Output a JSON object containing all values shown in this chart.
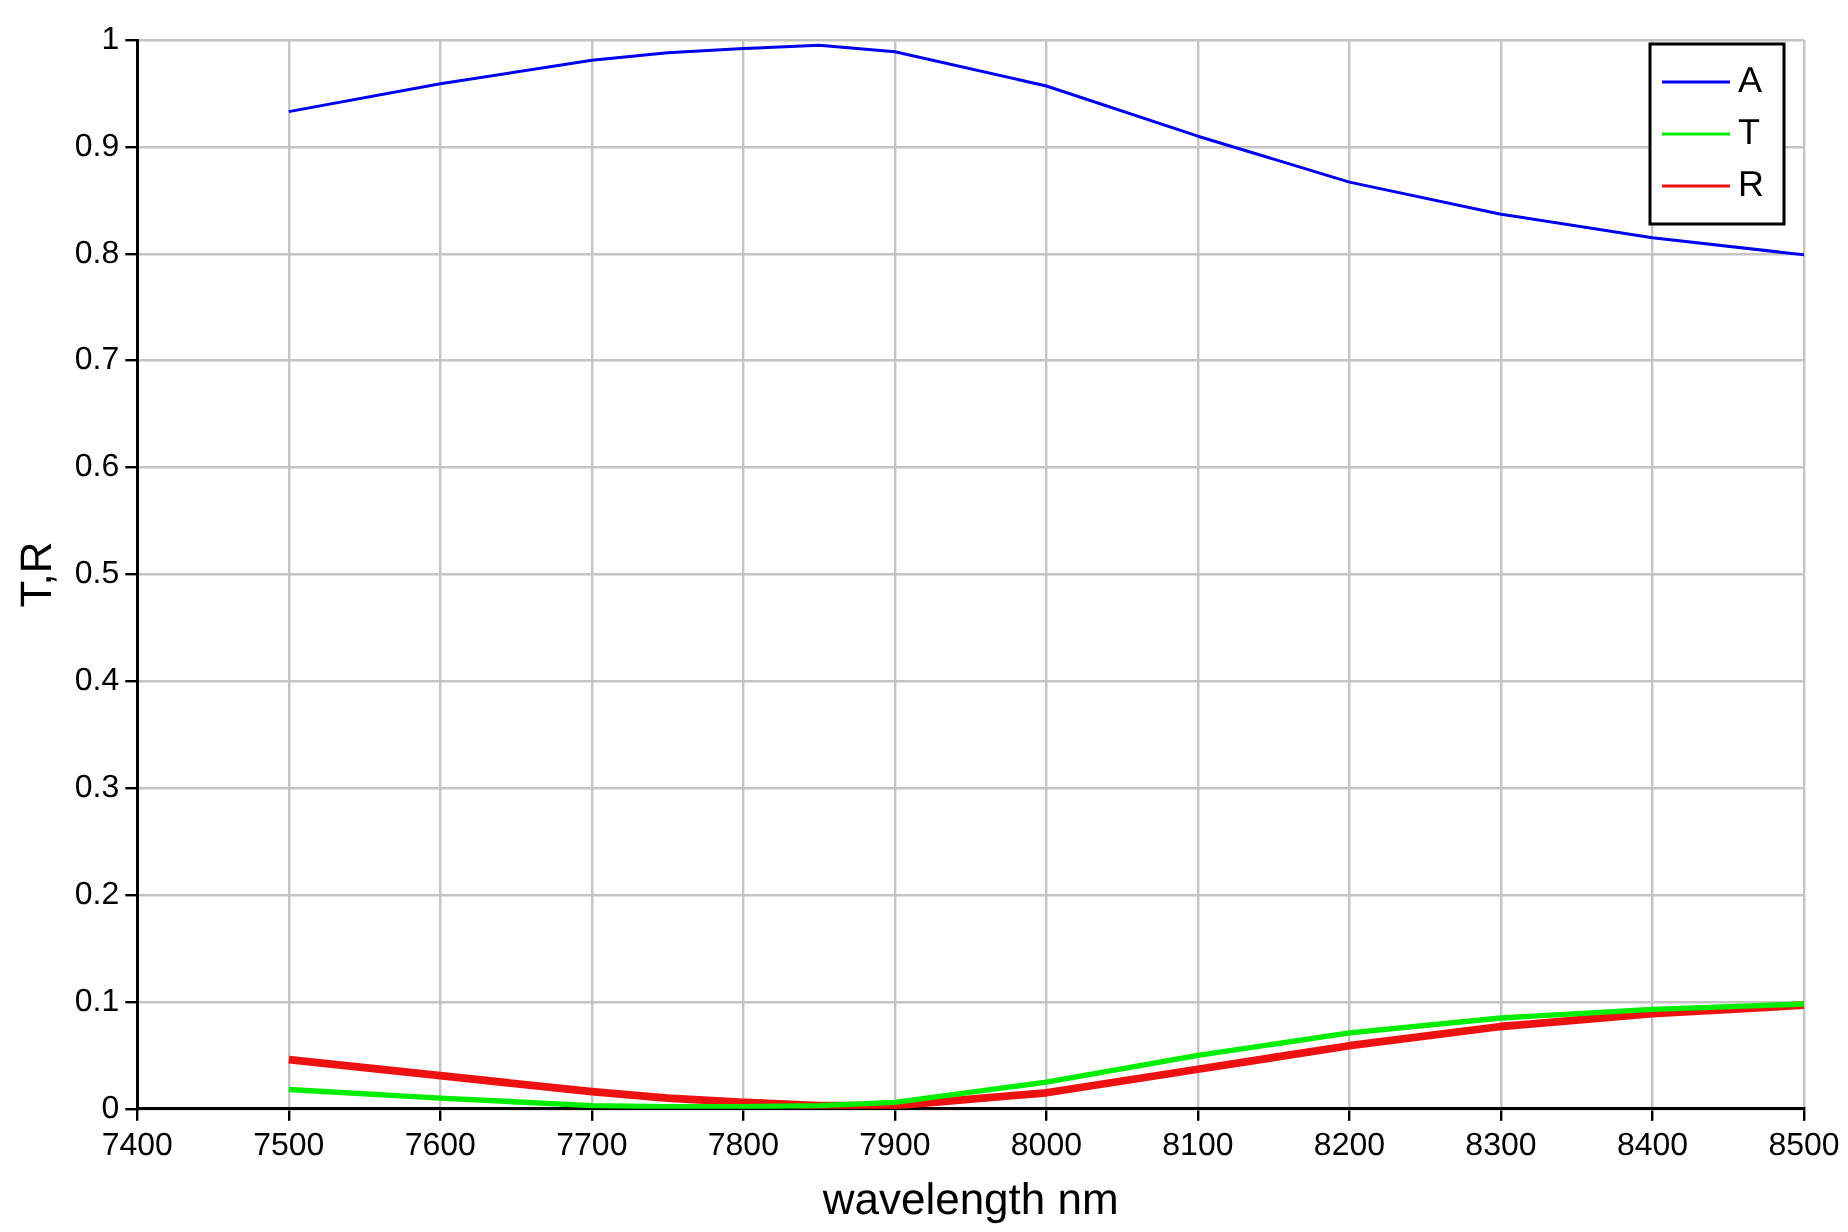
{
  "chart_data": {
    "type": "line",
    "xlabel": "wavelength nm",
    "ylabel": "T,R",
    "x": [
      7500,
      7600,
      7700,
      7750,
      7800,
      7850,
      7900,
      8000,
      8100,
      8200,
      8300,
      8400,
      8500
    ],
    "series": [
      {
        "name": "A",
        "color": "#0000ee",
        "values": [
          0.933,
          0.959,
          0.981,
          0.988,
          0.992,
          0.995,
          0.989,
          0.957,
          0.91,
          0.867,
          0.837,
          0.815,
          0.799
        ]
      },
      {
        "name": "T",
        "color": "#00ee00",
        "values": [
          0.018,
          0.01,
          0.003,
          0.002,
          0.002,
          0.003,
          0.006,
          0.025,
          0.05,
          0.071,
          0.085,
          0.093,
          0.098
        ]
      },
      {
        "name": "R",
        "color": "#ee1111",
        "values": [
          0.046,
          0.031,
          0.016,
          0.01,
          0.006,
          0.003,
          0.003,
          0.015,
          0.037,
          0.059,
          0.077,
          0.089,
          0.097
        ]
      }
    ],
    "xlim": [
      7400,
      8500
    ],
    "xticks": [
      7400,
      7500,
      7600,
      7700,
      7800,
      7900,
      8000,
      8100,
      8200,
      8300,
      8400,
      8500
    ],
    "ylim": [
      0,
      1
    ],
    "yticks": [
      0,
      0.1,
      0.2,
      0.3,
      0.4,
      0.5,
      0.6,
      0.7,
      0.8,
      0.9,
      1
    ],
    "grid": true,
    "legend": "top right",
    "marker": "none",
    "line_style": "solid"
  }
}
